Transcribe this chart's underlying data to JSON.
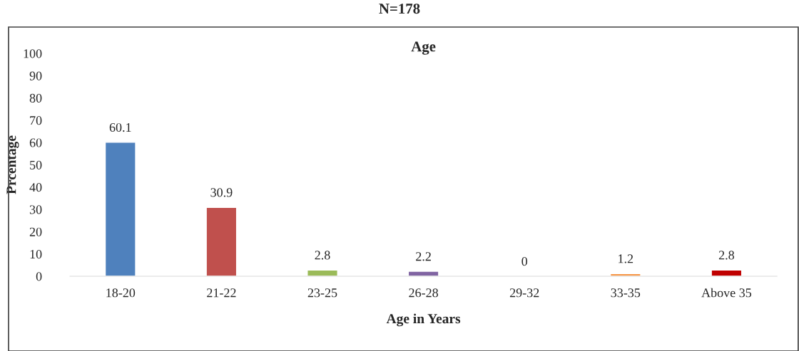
{
  "chart_data": {
    "type": "bar",
    "title": "Age",
    "xlabel": "Age in Years",
    "ylabel": "Prcentage",
    "annotations": [
      "N=178"
    ],
    "categories": [
      "18-20",
      "21-22",
      "23-25",
      "26-28",
      "29-32",
      "33-35",
      "Above 35"
    ],
    "values": [
      60.1,
      30.9,
      2.8,
      2.2,
      0,
      1.2,
      2.8
    ],
    "colors": [
      "#4f81bd",
      "#c0504d",
      "#9bbb59",
      "#8064a2",
      null,
      "#f79646",
      "#c00000"
    ],
    "ylim": [
      0,
      100
    ],
    "yticks": [
      0,
      10,
      20,
      30,
      40,
      50,
      60,
      70,
      80,
      90,
      100
    ],
    "data_labels": true,
    "grid": false,
    "legend": false
  }
}
